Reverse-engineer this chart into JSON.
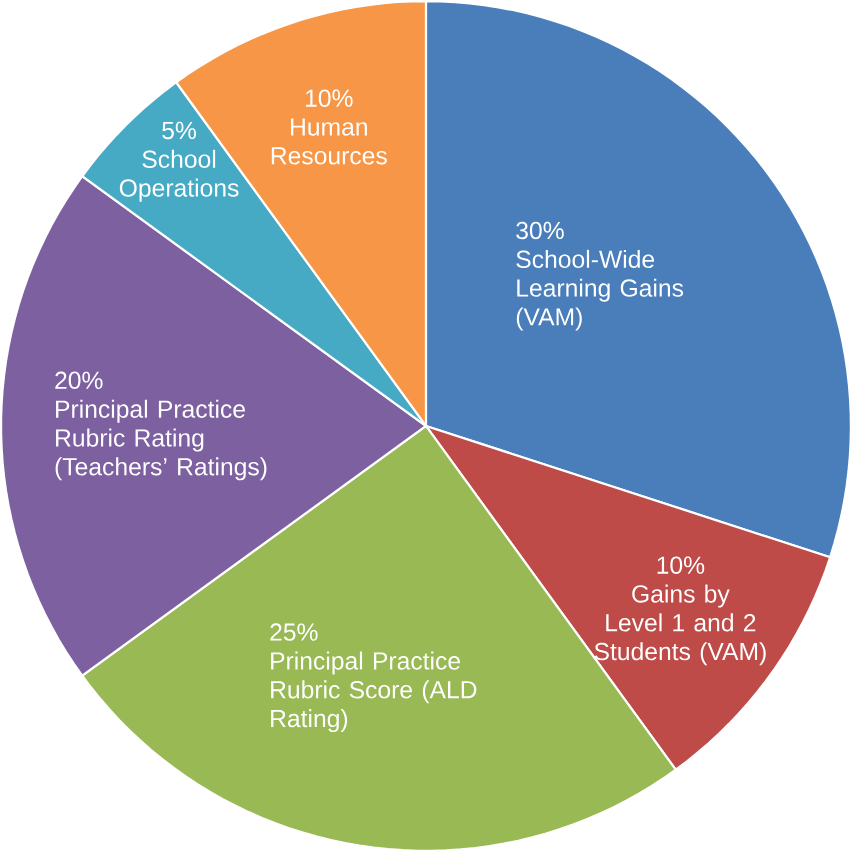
{
  "chart_data": {
    "type": "pie",
    "categories": [
      "School-Wide Learning Gains (VAM)",
      "Gains by Level 1 and 2 Students (VAM)",
      "Principal Practice Rubric Score (ALD Rating)",
      "Principal Practice Rubric Rating (Teachers’ Ratings)",
      "School Operations",
      "Human Resources"
    ],
    "values": [
      30,
      10,
      25,
      20,
      5,
      10
    ],
    "value_labels": [
      "30%",
      "10%",
      "25%",
      "20%",
      "5%",
      "10%"
    ],
    "colors": [
      "#4a7ebb",
      "#be4b48",
      "#98b954",
      "#7d60a0",
      "#46aac5",
      "#f79646"
    ]
  }
}
